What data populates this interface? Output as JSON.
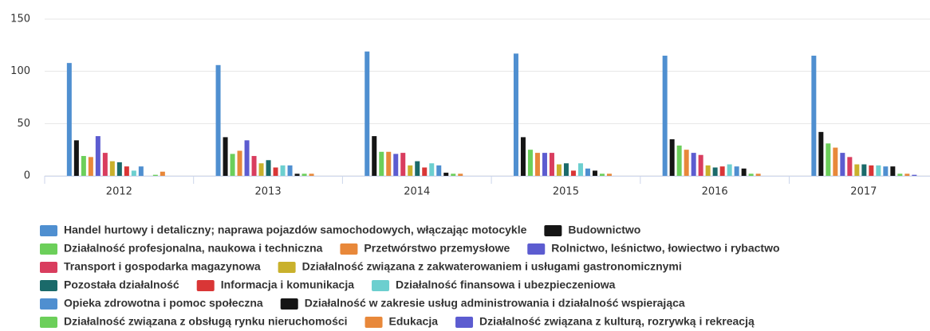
{
  "chart_data": {
    "type": "bar",
    "categories": [
      "2012",
      "2013",
      "2014",
      "2015",
      "2016",
      "2017"
    ],
    "ylim": [
      0,
      150
    ],
    "yticks": [
      0,
      50,
      100,
      150
    ],
    "grid": true,
    "series": [
      {
        "name": "Handel hurtowy i detaliczny; naprawa pojazdów samochodowych, włączając motocykle",
        "color": "#4f8fd0",
        "values": [
          108,
          106,
          119,
          117,
          115,
          115
        ]
      },
      {
        "name": "Budownictwo",
        "color": "#151515",
        "values": [
          34,
          37,
          38,
          37,
          35,
          42
        ]
      },
      {
        "name": "Działalność profesjonalna, naukowa i techniczna",
        "color": "#6ccf5a",
        "values": [
          19,
          21,
          23,
          25,
          29,
          31
        ]
      },
      {
        "name": "Przetwórstwo przemysłowe",
        "color": "#e8883a",
        "values": [
          18,
          24,
          23,
          22,
          25,
          27
        ]
      },
      {
        "name": "Rolnictwo, leśnictwo, łowiectwo i rybactwo",
        "color": "#5c5cd0",
        "values": [
          38,
          34,
          21,
          22,
          22,
          22
        ]
      },
      {
        "name": "Transport i gospodarka magazynowa",
        "color": "#d93d5e",
        "values": [
          22,
          19,
          22,
          22,
          20,
          18
        ]
      },
      {
        "name": "Działalność związana z zakwaterowaniem i usługami gastronomicznymi",
        "color": "#c9b12c",
        "values": [
          14,
          12,
          10,
          11,
          10,
          11
        ]
      },
      {
        "name": "Pozostała działalność",
        "color": "#1a6a6a",
        "values": [
          13,
          15,
          14,
          12,
          8,
          11
        ]
      },
      {
        "name": "Informacja i komunikacja",
        "color": "#d93636",
        "values": [
          9,
          8,
          8,
          5,
          9,
          10
        ]
      },
      {
        "name": "Działalność finansowa i ubezpieczeniowa",
        "color": "#6ccfcf",
        "values": [
          5,
          10,
          12,
          12,
          11,
          10
        ]
      },
      {
        "name": "Opieka zdrowotna i pomoc społeczna",
        "color": "#4f8fd0",
        "values": [
          9,
          10,
          10,
          7,
          9,
          9
        ]
      },
      {
        "name": "Działalność w zakresie usług administrowania i działalność wspierająca",
        "color": "#151515",
        "values": [
          0,
          2,
          3,
          5,
          7,
          9
        ]
      },
      {
        "name": "Działalność związana z obsługą rynku nieruchomości",
        "color": "#6ccf5a",
        "values": [
          1,
          2,
          2,
          2,
          2,
          2
        ]
      },
      {
        "name": "Edukacja",
        "color": "#e8883a",
        "values": [
          4,
          2,
          2,
          2,
          2,
          2
        ]
      },
      {
        "name": "Działalność związana z kulturą, rozrywką i rekreacją",
        "color": "#5c5cd0",
        "values": [
          0,
          0,
          0,
          0,
          0,
          1
        ]
      }
    ]
  }
}
